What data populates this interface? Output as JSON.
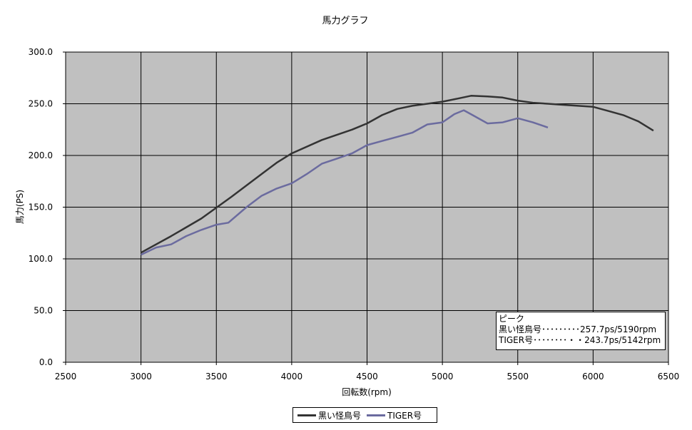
{
  "chart_data": {
    "type": "line",
    "title": "馬力グラフ",
    "xlabel": "回転数(rpm)",
    "ylabel": "馬力(PS)",
    "xlim": [
      2500,
      6500
    ],
    "ylim": [
      0,
      300
    ],
    "x_ticks": [
      "2500",
      "3000",
      "3500",
      "4000",
      "4500",
      "5000",
      "5500",
      "6000",
      "6500"
    ],
    "y_ticks": [
      "0.0",
      "50.0",
      "100.0",
      "150.0",
      "200.0",
      "250.0",
      "300.0"
    ],
    "grid": true,
    "plot_background": "#c0c0c0",
    "legend_position": "bottom-center",
    "series": [
      {
        "name": "黒い怪鳥号",
        "color": "#333333",
        "points": [
          [
            3000,
            106
          ],
          [
            3200,
            122
          ],
          [
            3400,
            139
          ],
          [
            3600,
            160
          ],
          [
            3800,
            182
          ],
          [
            3900,
            193
          ],
          [
            4000,
            202
          ],
          [
            4200,
            215
          ],
          [
            4400,
            225
          ],
          [
            4500,
            231
          ],
          [
            4600,
            239
          ],
          [
            4700,
            245
          ],
          [
            4800,
            248
          ],
          [
            4900,
            250
          ],
          [
            5000,
            252
          ],
          [
            5100,
            255
          ],
          [
            5190,
            257.7
          ],
          [
            5300,
            257
          ],
          [
            5400,
            256
          ],
          [
            5500,
            253
          ],
          [
            5600,
            251
          ],
          [
            5700,
            250
          ],
          [
            5800,
            249
          ],
          [
            5900,
            248
          ],
          [
            6000,
            247
          ],
          [
            6100,
            243
          ],
          [
            6200,
            239
          ],
          [
            6300,
            233
          ],
          [
            6400,
            224
          ]
        ]
      },
      {
        "name": "TIGER号",
        "color": "#6b6b9f",
        "points": [
          [
            3000,
            104
          ],
          [
            3100,
            111
          ],
          [
            3200,
            114
          ],
          [
            3300,
            122
          ],
          [
            3400,
            128
          ],
          [
            3500,
            133
          ],
          [
            3580,
            135
          ],
          [
            3700,
            150
          ],
          [
            3800,
            161
          ],
          [
            3900,
            168
          ],
          [
            4000,
            173
          ],
          [
            4100,
            182
          ],
          [
            4200,
            192
          ],
          [
            4300,
            197
          ],
          [
            4400,
            202
          ],
          [
            4500,
            210
          ],
          [
            4600,
            214
          ],
          [
            4700,
            218
          ],
          [
            4800,
            222
          ],
          [
            4900,
            230
          ],
          [
            5000,
            232
          ],
          [
            5080,
            240
          ],
          [
            5142,
            243.7
          ],
          [
            5200,
            239
          ],
          [
            5300,
            231
          ],
          [
            5400,
            232
          ],
          [
            5500,
            236
          ],
          [
            5600,
            232
          ],
          [
            5700,
            227
          ]
        ]
      }
    ],
    "annotation": {
      "title": "ピーク",
      "lines": [
        "黒い怪鳥号･････････257.7ps/5190rpm",
        "TIGER号････････・・243.7ps/5142rpm"
      ]
    }
  }
}
